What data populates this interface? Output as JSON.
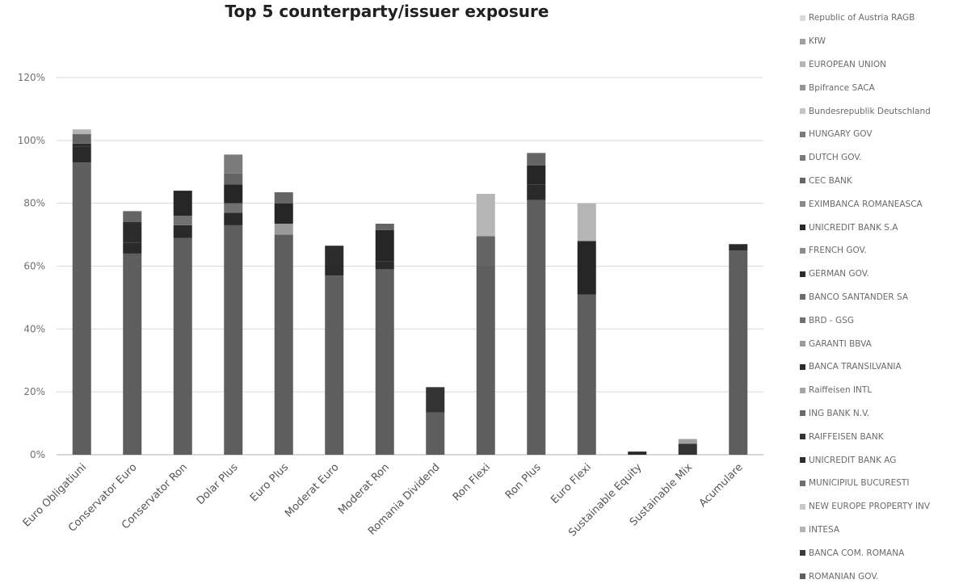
{
  "chart_data": {
    "type": "bar",
    "stacked": true,
    "title": "Top 5 counterparty/issuer exposure",
    "y_ticks": [
      "0%",
      "20%",
      "40%",
      "60%",
      "80%",
      "100%",
      "120%"
    ],
    "ylim": [
      0,
      120
    ],
    "grid": true,
    "legend_position": "right",
    "categories": [
      "Euro Obligatiuni",
      "Conservator Euro",
      "Conservator Ron",
      "Dolar Plus",
      "Euro Plus",
      "Moderat Euro",
      "Moderat Ron",
      "Romania Dividend",
      "Ron Flexi",
      "Ron Plus",
      "Euro Flexi",
      "Sustainable Equity",
      "Sustainable Mix",
      "Acumulare"
    ],
    "series": [
      {
        "name": "ROMANIAN GOV.",
        "color": "#5e5e5e",
        "values": [
          93,
          64,
          69,
          73,
          70,
          57,
          59,
          13.5,
          60,
          81,
          51,
          0,
          0,
          65
        ]
      },
      {
        "name": "BANCA COM. ROMANA",
        "color": "#3a3a3a",
        "values": [
          0,
          0,
          0,
          0,
          0,
          0,
          0,
          0,
          0,
          0,
          0,
          0,
          0,
          0
        ]
      },
      {
        "name": "INTESA",
        "color": "#b4b4b4",
        "values": [
          0,
          0,
          0,
          0,
          0,
          0,
          0,
          0,
          0,
          0,
          0,
          0,
          0,
          0
        ]
      },
      {
        "name": "NEW EUROPE PROPERTY INV",
        "color": "#c8c8c8",
        "values": [
          0,
          0,
          0,
          0,
          0,
          0,
          0,
          0,
          0,
          0,
          0,
          0,
          0,
          0
        ]
      },
      {
        "name": "MUNICIPIUL BUCURESTI",
        "color": "#6e6e6e",
        "values": [
          0,
          0,
          0,
          0,
          0,
          0,
          0,
          0,
          0,
          0,
          0,
          0,
          0,
          0
        ]
      },
      {
        "name": "UNICREDIT BANK AG",
        "color": "#2e2e2e",
        "values": [
          0,
          0,
          0,
          0,
          0,
          0,
          0,
          0,
          0,
          0,
          0,
          0,
          0,
          0
        ]
      },
      {
        "name": "RAIFFEISEN BANK",
        "color": "#333333",
        "values": [
          0,
          0,
          0,
          0,
          0,
          0,
          0,
          8,
          0,
          0,
          0,
          0,
          3.5,
          0
        ]
      },
      {
        "name": "ING BANK N.V.",
        "color": "#6a6a6a",
        "values": [
          0,
          0,
          0,
          0,
          0,
          0,
          0,
          0,
          0,
          0,
          0,
          0,
          0,
          0
        ]
      },
      {
        "name": "Raiffeisen INTL",
        "color": "#a5a5a5",
        "values": [
          0,
          0,
          0,
          0,
          0,
          0,
          0,
          0,
          0,
          0,
          0,
          0,
          0,
          0
        ]
      },
      {
        "name": "BANCA TRANSILVANIA",
        "color": "#2a2a2a",
        "values": [
          5,
          3.5,
          4,
          4,
          0,
          3,
          2.5,
          0,
          0,
          5,
          0,
          1,
          0,
          2
        ]
      },
      {
        "name": "GARANTI BBVA",
        "color": "#9a9a9a",
        "values": [
          0,
          0,
          0,
          0,
          3.5,
          0,
          0,
          0,
          0,
          0,
          0,
          0,
          0,
          0
        ]
      },
      {
        "name": "BRD - GSG",
        "color": "#717171",
        "values": [
          0,
          0,
          3,
          3,
          0,
          0,
          0,
          0,
          0,
          0,
          0,
          0,
          0,
          0
        ]
      },
      {
        "name": "BANCO SANTANDER SA",
        "color": "#6b6b6b",
        "values": [
          0,
          0,
          0,
          0,
          0,
          0,
          0,
          0,
          0,
          0,
          0,
          0,
          0,
          0
        ]
      },
      {
        "name": "GERMAN GOV.",
        "color": "#2c2c2c",
        "values": [
          1,
          6.5,
          0,
          0,
          0,
          6.5,
          0,
          0,
          0,
          0,
          0,
          0,
          0,
          0
        ]
      },
      {
        "name": "FRENCH GOV.",
        "color": "#8c8c8c",
        "values": [
          0,
          0,
          0,
          0,
          0,
          0,
          0,
          0,
          0,
          0,
          0,
          0,
          0,
          0
        ]
      },
      {
        "name": "UNICREDIT BANK S.A",
        "color": "#262626",
        "values": [
          0,
          0,
          8,
          6,
          6.5,
          0,
          10,
          0,
          0,
          6,
          17,
          0,
          0,
          0
        ]
      },
      {
        "name": "EXIMBANCA ROMANEASCA",
        "color": "#8a8a8a",
        "values": [
          0,
          0,
          0,
          0,
          0,
          0,
          0,
          0,
          0,
          0,
          0,
          0,
          0,
          0
        ]
      },
      {
        "name": "CEC BANK",
        "color": "#656565",
        "values": [
          3,
          3.5,
          0,
          3.5,
          3.5,
          0,
          2,
          0,
          9.5,
          4,
          0,
          0,
          0,
          0
        ]
      },
      {
        "name": "DUTCH GOV.",
        "color": "#7a7a7a",
        "values": [
          0,
          0,
          0,
          0,
          0,
          0,
          0,
          0,
          0,
          0,
          0,
          0,
          0,
          0
        ]
      },
      {
        "name": "HUNGARY GOV",
        "color": "#7b7b7b",
        "values": [
          0,
          0,
          0,
          6,
          0,
          0,
          0,
          0,
          0,
          0,
          0,
          0,
          0,
          0
        ]
      },
      {
        "name": "Bundesrepublik Deutschland",
        "color": "#c4c4c4",
        "values": [
          0,
          0,
          0,
          0,
          0,
          0,
          0,
          0,
          0,
          0,
          0,
          0,
          0,
          0
        ]
      },
      {
        "name": "Bpifrance SACA",
        "color": "#959595",
        "values": [
          0,
          0,
          0,
          0,
          0,
          0,
          0,
          0,
          0,
          0,
          0,
          0,
          0,
          0
        ]
      },
      {
        "name": "EUROPEAN UNION",
        "color": "#b5b5b5",
        "values": [
          1.5,
          0,
          0,
          0,
          0,
          0,
          0,
          0,
          13.5,
          0,
          12,
          0,
          0,
          0
        ]
      },
      {
        "name": "KfW",
        "color": "#a0a0a0",
        "values": [
          0,
          0,
          0,
          0,
          0,
          0,
          0,
          0,
          0,
          0,
          0,
          0,
          1.5,
          0
        ]
      },
      {
        "name": "Republic of Austria RAGB",
        "color": "#dadada",
        "values": [
          0,
          0,
          0,
          0,
          0,
          0,
          0,
          0,
          0,
          0,
          0,
          0,
          0,
          0
        ]
      }
    ],
    "legend_order": [
      "Republic of Austria RAGB",
      "KfW",
      "EUROPEAN UNION",
      "Bpifrance SACA",
      "Bundesrepublik Deutschland",
      "HUNGARY GOV",
      "DUTCH GOV.",
      "CEC BANK",
      "EXIMBANCA ROMANEASCA",
      "UNICREDIT BANK S.A",
      "FRENCH GOV.",
      "GERMAN GOV.",
      "BANCO SANTANDER SA",
      "BRD - GSG",
      "GARANTI BBVA",
      "BANCA TRANSILVANIA",
      "Raiffeisen INTL",
      "ING BANK N.V.",
      "RAIFFEISEN BANK",
      "UNICREDIT BANK AG",
      "MUNICIPIUL BUCURESTI",
      "NEW EUROPE PROPERTY INV",
      "INTESA",
      "BANCA COM. ROMANA",
      "ROMANIAN GOV."
    ]
  }
}
